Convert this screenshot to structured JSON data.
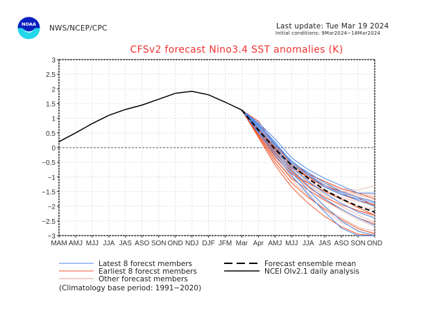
{
  "header": {
    "agency": "NWS/NCEP/CPC",
    "logo_text": "NOAA",
    "last_update": "Last update: Tue Mar 19 2024",
    "initial_conditions": "Initial conditions: 9Mar2024−18Mar2024"
  },
  "colors": {
    "title": "#f03232",
    "latest": "#4a86e8",
    "earliest": "#f0552a",
    "other": "#e8c0b8",
    "observed": "#000000",
    "mean": "#000000"
  },
  "chart_data": {
    "type": "line",
    "title": "CFSv2 forecast Nino3.4 SST anomalies (K)",
    "xlabel": "",
    "ylabel": "",
    "x": [
      "MAM",
      "AMJ",
      "MJJ",
      "JJA",
      "JAS",
      "ASO",
      "SON",
      "OND",
      "NDJ",
      "DJF",
      "JFM",
      "Mar",
      "Apr",
      "AMJ",
      "MJJ",
      "JJA",
      "JAS",
      "ASO",
      "SON",
      "OND"
    ],
    "ylim": [
      -3,
      3
    ],
    "yticks": [
      "3",
      "2.5",
      "2",
      "1.5",
      "1",
      "0.5",
      "0",
      "−0.5",
      "−1",
      "−1.5",
      "−2",
      "−2.5",
      "−3"
    ],
    "ytick_values": [
      3,
      2.5,
      2,
      1.5,
      1,
      0.5,
      0,
      -0.5,
      -1,
      -1.5,
      -2,
      -2.5,
      -3
    ],
    "grid": true,
    "observed": {
      "name": "NCEI OIv2.1 daily analysis",
      "x_index": [
        0,
        1,
        2,
        3,
        4,
        5,
        6,
        7,
        8,
        9,
        10,
        11
      ],
      "values": [
        0.2,
        0.5,
        0.82,
        1.1,
        1.3,
        1.45,
        1.65,
        1.85,
        1.92,
        1.8,
        1.55,
        1.28
      ]
    },
    "ensemble_mean": {
      "name": "Forecast ensemble mean",
      "x_index": [
        11,
        12,
        13,
        14,
        15,
        16,
        17,
        18,
        19
      ],
      "values": [
        1.28,
        0.6,
        -0.05,
        -0.6,
        -1.05,
        -1.45,
        -1.75,
        -2.0,
        -2.2
      ]
    },
    "latest_members": {
      "name": "Latest 8 forecst members",
      "x_index": [
        11,
        12,
        13,
        14,
        15,
        16,
        17,
        18,
        19
      ],
      "values": [
        [
          1.28,
          0.85,
          0.3,
          -0.35,
          -0.75,
          -1.05,
          -1.3,
          -1.55,
          -1.55
        ],
        [
          1.28,
          0.8,
          0.2,
          -0.5,
          -0.85,
          -1.2,
          -1.5,
          -1.7,
          -1.85
        ],
        [
          1.28,
          0.75,
          0.15,
          -0.55,
          -0.95,
          -1.35,
          -1.6,
          -1.75,
          -1.9
        ],
        [
          1.28,
          0.7,
          0.05,
          -0.65,
          -1.15,
          -1.55,
          -1.9,
          -2.2,
          -2.4
        ],
        [
          1.28,
          0.65,
          -0.05,
          -0.75,
          -1.3,
          -1.75,
          -2.1,
          -2.4,
          -2.65
        ],
        [
          1.28,
          0.55,
          -0.15,
          -0.85,
          -1.45,
          -2.0,
          -2.5,
          -2.85,
          -3.0
        ],
        [
          1.28,
          0.5,
          -0.25,
          -0.95,
          -1.6,
          -2.2,
          -2.75,
          -3.0,
          -3.0
        ],
        [
          1.28,
          0.78,
          0.1,
          -0.45,
          -0.9,
          -1.3,
          -1.55,
          -1.8,
          -2.0
        ]
      ]
    },
    "earliest_members": {
      "name": "Earliest 8 forecst members",
      "x_index": [
        11,
        12,
        13,
        14,
        15,
        16,
        17,
        18,
        19
      ],
      "values": [
        [
          1.28,
          0.9,
          0.1,
          -0.55,
          -0.9,
          -1.15,
          -1.4,
          -1.55,
          -1.75
        ],
        [
          1.28,
          0.6,
          -0.1,
          -0.7,
          -1.0,
          -1.3,
          -1.5,
          -1.7,
          -2.0
        ],
        [
          1.28,
          0.5,
          -0.3,
          -0.9,
          -1.2,
          -1.5,
          -1.75,
          -2.05,
          -2.3
        ],
        [
          1.28,
          0.45,
          -0.4,
          -1.05,
          -1.45,
          -1.8,
          -2.1,
          -2.4,
          -2.6
        ],
        [
          1.28,
          0.4,
          -0.5,
          -1.2,
          -1.7,
          -2.1,
          -2.45,
          -2.75,
          -2.95
        ],
        [
          1.28,
          0.35,
          -0.6,
          -1.35,
          -1.9,
          -2.35,
          -2.7,
          -2.95,
          -3.0
        ],
        [
          1.28,
          0.55,
          -0.2,
          -0.8,
          -1.35,
          -1.7,
          -1.95,
          -2.15,
          -2.3
        ],
        [
          1.28,
          0.65,
          0.0,
          -0.6,
          -1.0,
          -1.35,
          -1.6,
          -1.8,
          -1.95
        ]
      ]
    },
    "other_members": {
      "name": "Other forecast members",
      "x_index": [
        11,
        12,
        13,
        14,
        15,
        16,
        17,
        18,
        19
      ],
      "values": [
        [
          1.28,
          0.75,
          0.05,
          -0.5,
          -0.9,
          -1.2,
          -1.4,
          -1.45,
          -1.3
        ],
        [
          1.28,
          0.7,
          0.0,
          -0.6,
          -1.0,
          -1.3,
          -1.5,
          -1.55,
          -1.6
        ],
        [
          1.28,
          0.6,
          -0.1,
          -0.7,
          -1.1,
          -1.45,
          -1.7,
          -1.85,
          -1.95
        ],
        [
          1.28,
          0.55,
          -0.15,
          -0.75,
          -1.2,
          -1.6,
          -1.9,
          -2.15,
          -2.35
        ],
        [
          1.28,
          0.5,
          -0.25,
          -0.85,
          -1.35,
          -1.8,
          -2.15,
          -2.45,
          -2.7
        ],
        [
          1.28,
          0.45,
          -0.35,
          -1.0,
          -1.55,
          -2.05,
          -2.4,
          -2.7,
          -2.85
        ],
        [
          1.28,
          0.65,
          -0.05,
          -0.65,
          -1.05,
          -1.35,
          -1.55,
          -1.7,
          -1.8
        ],
        [
          1.28,
          0.6,
          -0.05,
          -0.55,
          -0.95,
          -1.25,
          -1.45,
          -1.6,
          -1.65
        ],
        [
          1.28,
          0.5,
          -0.2,
          -0.8,
          -1.25,
          -1.65,
          -2.0,
          -2.3,
          -2.55
        ],
        [
          1.28,
          0.4,
          -0.4,
          -1.1,
          -1.65,
          -2.15,
          -2.55,
          -2.8,
          -2.9
        ],
        [
          1.28,
          0.7,
          0.05,
          -0.55,
          -0.95,
          -1.3,
          -1.5,
          -1.65,
          -1.7
        ],
        [
          1.28,
          0.55,
          -0.15,
          -0.7,
          -1.15,
          -1.5,
          -1.8,
          -2.0,
          -2.1
        ]
      ]
    },
    "legend": {
      "placement": "bottom",
      "entries": [
        {
          "label": "Latest 8 forecst members",
          "style": "latest"
        },
        {
          "label": "Earliest 8 forecst members",
          "style": "earliest"
        },
        {
          "label": "Other forecast members",
          "style": "other"
        },
        {
          "label": "Forecast ensemble mean",
          "style": "mean"
        },
        {
          "label": "NCEI OIv2.1 daily analysis",
          "style": "observed"
        }
      ],
      "note": "(Climatology base period: 1991−2020)"
    }
  }
}
